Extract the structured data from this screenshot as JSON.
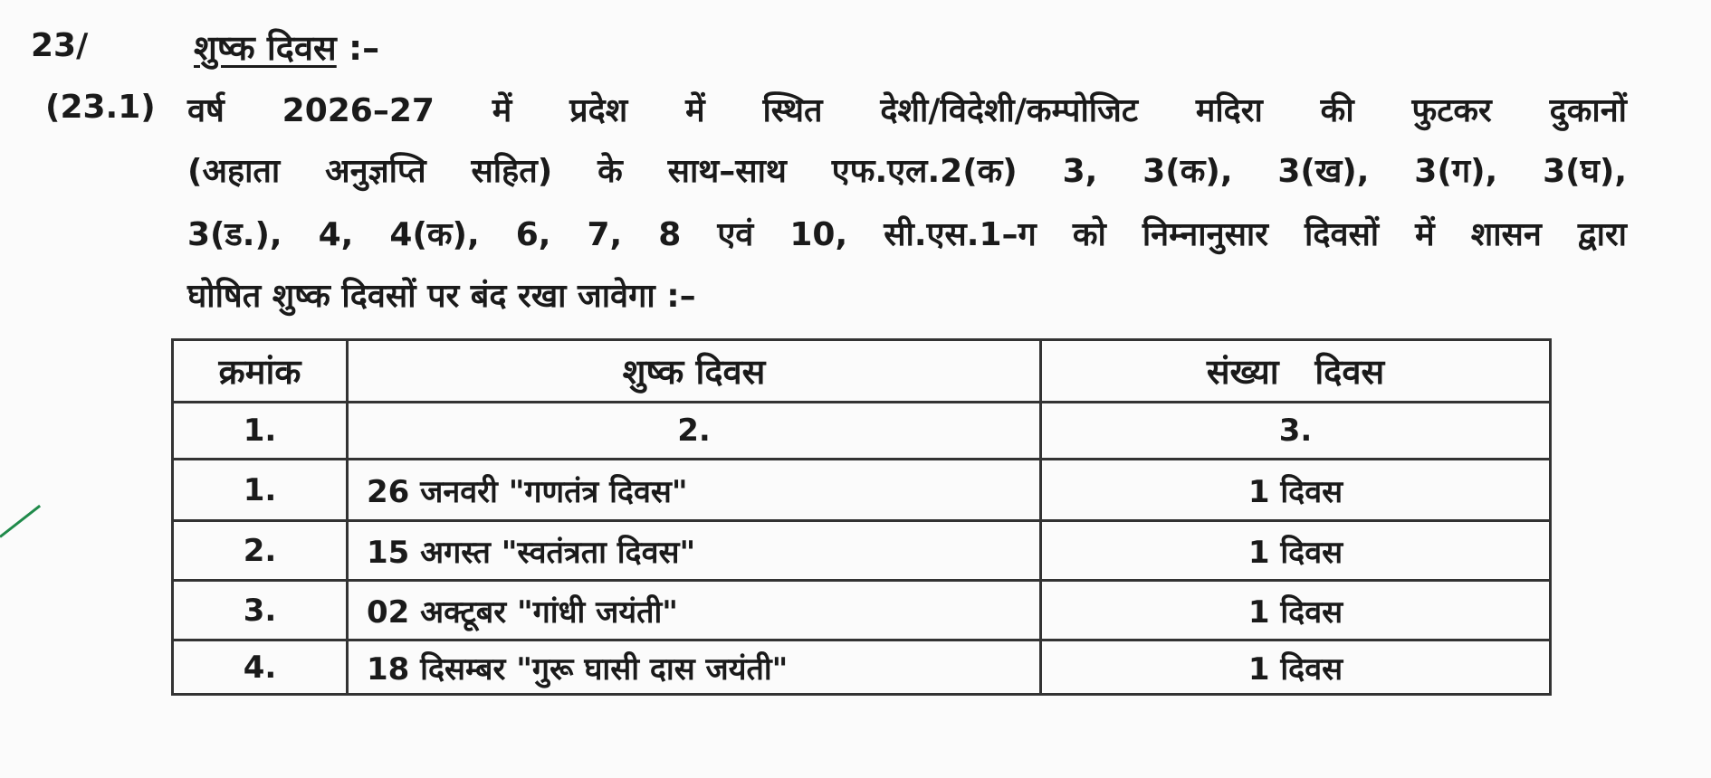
{
  "section": {
    "number": "23/",
    "title": "शुष्क दिवस",
    "title_suffix": ":–"
  },
  "clause": {
    "number": "(23.1)",
    "lines": [
      "वर्ष 2026–27 में प्रदेश में स्थित देशी/विदेशी/कम्पोजिट मदिरा की फुटकर दुकानों",
      "(अहाता अनुज्ञप्ति सहित) के साथ–साथ एफ.एल.2(क) 3, 3(क), 3(ख), 3(ग), 3(घ),",
      "3(ड.), 4, 4(क), 6, 7, 8 एवं 10, सी.एस.1–ग को निम्नानुसार दिवसों में शासन द्वारा",
      "घोषित शुष्क दिवसों पर बंद रखा जावेगा :–"
    ]
  },
  "table": {
    "headers": [
      "क्रमांक",
      "शुष्क दिवस",
      "संख्या   दिवस"
    ],
    "column_numbers": [
      "1.",
      "2.",
      "3."
    ],
    "rows": [
      {
        "sno": "1.",
        "day": "26 जनवरी \"गणतंत्र दिवस\"",
        "count": "1 दिवस"
      },
      {
        "sno": "2.",
        "day": "15 अगस्त \"स्वतंत्रता दिवस\"",
        "count": "1 दिवस"
      },
      {
        "sno": "3.",
        "day": "02 अक्टूबर \"गांधी जयंती\"",
        "count": "1 दिवस"
      },
      {
        "sno": "4.",
        "day": "18 दिसम्बर \"गुरू घासी दास जयंती\"",
        "count": "1 दिवस"
      }
    ]
  },
  "colors": {
    "ink": "#1a1a1a",
    "tick_mark": "#1f8a4a"
  }
}
